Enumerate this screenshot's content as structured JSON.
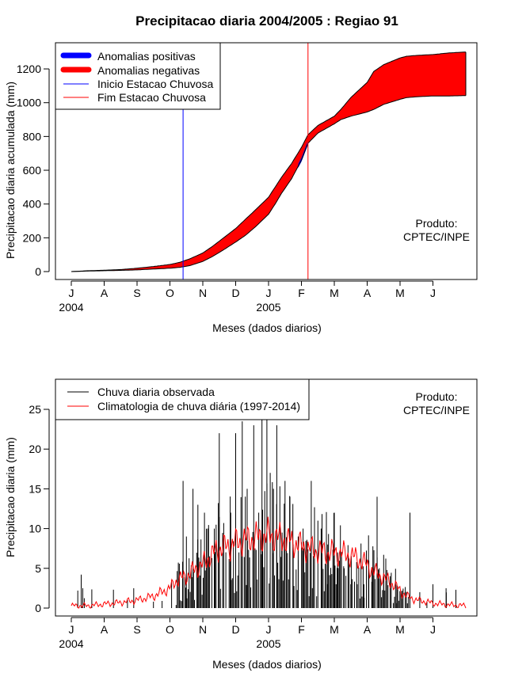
{
  "title": "Precipitacao diaria 2004/2005 : Regiao 91",
  "credit": [
    "Produto:",
    "CPTEC/INPE"
  ],
  "month_ticks": [
    "J",
    "A",
    "S",
    "O",
    "N",
    "D",
    "J",
    "F",
    "M",
    "A",
    "M",
    "J"
  ],
  "year_labels": [
    {
      "month_index": 0,
      "text": "2004"
    },
    {
      "month_index": 6,
      "text": "2005"
    }
  ],
  "colors": {
    "positive": "#0000ff",
    "negative": "#ff0000",
    "start_line": "#0000ff",
    "end_line": "#ff0000",
    "observed": "#000000",
    "climatology": "#ff0000"
  },
  "chart_data": [
    {
      "type": "area",
      "title": "Precipitacao diaria 2004/2005 : Regiao 91",
      "xlabel": "Meses (dados diarios)",
      "ylabel": "Precipitacao diaria acumulada (mm)",
      "x_units": "months since Jul 1 2004",
      "xlim": [
        0,
        12
      ],
      "ylim": [
        0,
        1350
      ],
      "yticks": [
        0,
        200,
        400,
        600,
        800,
        1000,
        1200
      ],
      "legend": {
        "placement": "top-left",
        "entries": [
          {
            "label": "Anomalias positivas",
            "color": "#0000ff",
            "kind": "thick"
          },
          {
            "label": "Anomalias negativas",
            "color": "#ff0000",
            "kind": "thick"
          },
          {
            "label": "Inicio Estacao Chuvosa",
            "color": "#0000ff",
            "kind": "thin"
          },
          {
            "label": "Fim Estacao Chuvosa",
            "color": "#ff0000",
            "kind": "thin"
          }
        ]
      },
      "observed_cumulative": {
        "x": [
          0,
          0.5,
          1,
          1.5,
          2,
          2.5,
          3,
          3.3,
          3.6,
          4,
          4.3,
          4.6,
          5,
          5.3,
          5.6,
          6,
          6.2,
          6.4,
          6.7,
          7,
          7.2,
          7.5,
          8,
          8.2,
          8.5,
          9,
          9.2,
          9.5,
          10,
          10.2,
          10.5,
          11,
          11.5,
          12
        ],
        "y": [
          0,
          3,
          5,
          7,
          10,
          15,
          20,
          25,
          35,
          60,
          90,
          125,
          175,
          215,
          265,
          340,
          400,
          465,
          550,
          660,
          760,
          820,
          875,
          900,
          920,
          945,
          960,
          990,
          1020,
          1030,
          1035,
          1040,
          1040,
          1042
        ]
      },
      "climatology_cumulative": {
        "x": [
          0,
          0.5,
          1,
          1.5,
          2,
          2.5,
          3,
          3.3,
          3.6,
          4,
          4.3,
          4.6,
          5,
          5.3,
          5.6,
          6,
          6.2,
          6.4,
          6.7,
          7,
          7.2,
          7.5,
          8,
          8.2,
          8.5,
          9,
          9.2,
          9.5,
          10,
          10.2,
          10.5,
          11,
          11.5,
          12
        ],
        "y": [
          0,
          5,
          8,
          12,
          20,
          30,
          42,
          55,
          75,
          110,
          150,
          195,
          255,
          310,
          365,
          440,
          500,
          560,
          640,
          735,
          810,
          865,
          920,
          960,
          1030,
          1120,
          1185,
          1225,
          1265,
          1275,
          1280,
          1285,
          1295,
          1300
        ]
      },
      "rainy_season_start_month": 3.4,
      "rainy_season_end_month": 7.2
    },
    {
      "type": "line",
      "xlabel": "Meses (dados diarios)",
      "ylabel": "Precipitacao diaria (mm)",
      "x_units": "months since Jul 1 2004",
      "xlim": [
        0,
        12
      ],
      "ylim": [
        0,
        28
      ],
      "yticks": [
        0,
        5,
        10,
        15,
        20,
        25
      ],
      "legend": {
        "placement": "top-left",
        "entries": [
          {
            "label": "Chuva diaria observada",
            "color": "#000000"
          },
          {
            "label": "Climatologia de chuva diária (1997-2014)",
            "color": "#ff0000"
          }
        ]
      },
      "observed_peaks": {
        "x": [
          0.3,
          0.35,
          1.9,
          3.05,
          3.4,
          3.5,
          3.7,
          3.85,
          4.05,
          4.15,
          4.35,
          4.5,
          4.85,
          5.0,
          5.1,
          5.2,
          5.35,
          5.55,
          5.7,
          5.8,
          5.95,
          6.05,
          6.15,
          6.25,
          6.4,
          6.5,
          6.65,
          6.75,
          6.9,
          7.05,
          7.3,
          7.5,
          7.6,
          7.8,
          8.0,
          8.1,
          8.3,
          8.5,
          8.7,
          8.9,
          9.05,
          9.15,
          9.2,
          9.3,
          9.5,
          9.7,
          9.9,
          10.3,
          10.6,
          11.0,
          11.4,
          11.7
        ],
        "y": [
          4.2,
          2.5,
          2.5,
          3.5,
          16,
          9,
          15,
          13,
          12,
          10,
          10,
          22,
          12,
          22,
          7,
          23.5,
          15,
          23,
          12,
          28,
          24,
          17,
          15,
          23,
          8,
          16,
          14,
          8,
          9,
          10,
          16,
          11,
          10,
          8,
          12,
          7,
          5,
          3,
          3,
          3,
          6,
          5,
          5,
          14,
          4,
          4,
          3,
          12,
          2,
          3,
          2.5,
          2.3
        ]
      },
      "climatology": {
        "x": [
          0,
          0.5,
          1,
          1.5,
          2,
          2.5,
          3,
          3.2,
          3.5,
          3.8,
          4,
          4.2,
          4.5,
          4.8,
          5,
          5.2,
          5.5,
          5.8,
          6,
          6.2,
          6.5,
          6.8,
          7,
          7.2,
          7.5,
          7.8,
          8,
          8.2,
          8.5,
          8.8,
          9,
          9.2,
          9.5,
          9.8,
          10,
          10.2,
          10.5,
          10.8,
          11,
          11.5,
          12
        ],
        "y": [
          0.3,
          0.3,
          0.5,
          0.7,
          1.0,
          1.5,
          2.5,
          3.5,
          4.0,
          5.0,
          5.5,
          6.5,
          7.5,
          7.8,
          8.2,
          8.5,
          8.8,
          9.0,
          9.2,
          9.0,
          8.6,
          8.2,
          7.8,
          7.5,
          7.2,
          7.0,
          7.0,
          6.9,
          6.6,
          6.0,
          5.4,
          4.6,
          3.8,
          3.0,
          2.2,
          1.5,
          1.0,
          0.8,
          0.6,
          0.4,
          0.3
        ]
      }
    }
  ]
}
